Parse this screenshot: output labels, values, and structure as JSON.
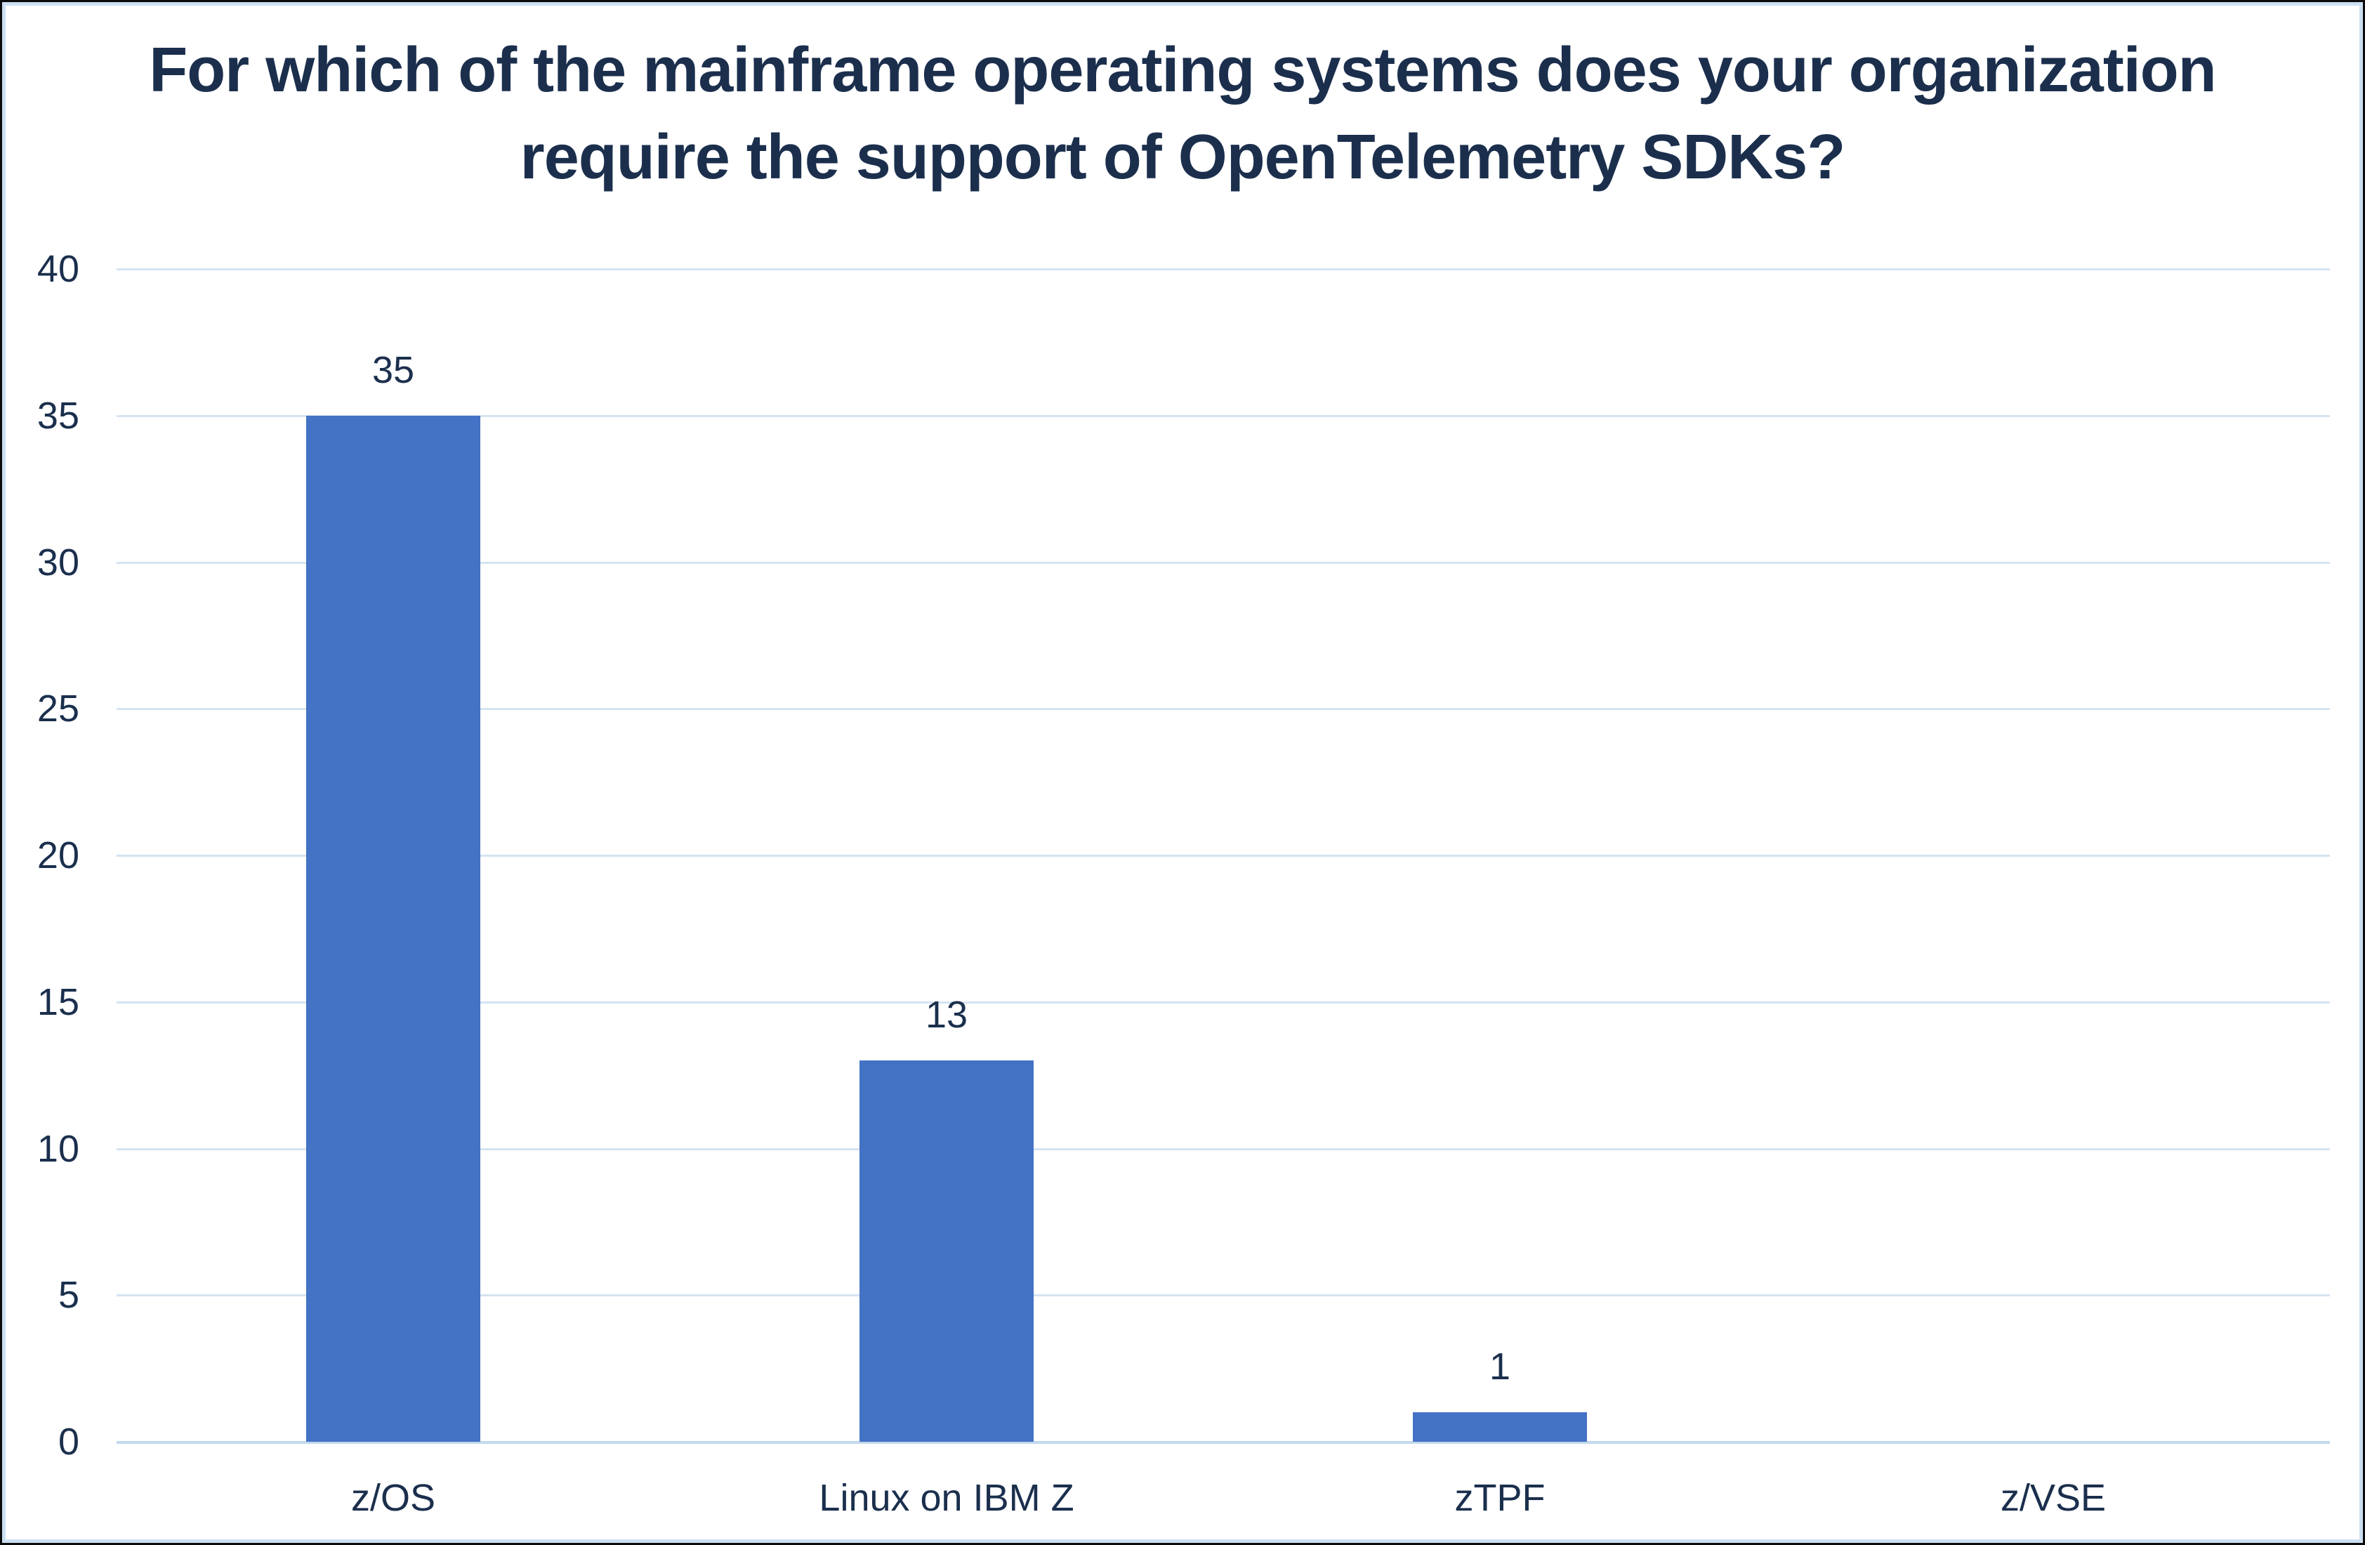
{
  "chart_data": {
    "type": "bar",
    "title": "For which of the mainframe operating systems does your organization require the support of OpenTelemetry SDKs?",
    "categories": [
      "z/OS",
      "Linux on IBM Z",
      "zTPF",
      "z/VSE"
    ],
    "values": [
      35,
      13,
      1,
      0
    ],
    "data_labels": [
      "35",
      "13",
      "1",
      ""
    ],
    "xlabel": "",
    "ylabel": "",
    "ylim": [
      0,
      40
    ],
    "yticks": [
      0,
      5,
      10,
      15,
      20,
      25,
      30,
      35,
      40
    ],
    "grid": "horizontal",
    "legend_position": "none",
    "colors": {
      "bar_fill": "#4472c4",
      "text": "#1b2f4d",
      "gridline": "#d5e3f2",
      "axis_baseline": "#c3d9ee",
      "frame_border_blue": "#ccdff2",
      "frame_border_dark": "#0b0b0b",
      "background": "#ffffff"
    }
  }
}
